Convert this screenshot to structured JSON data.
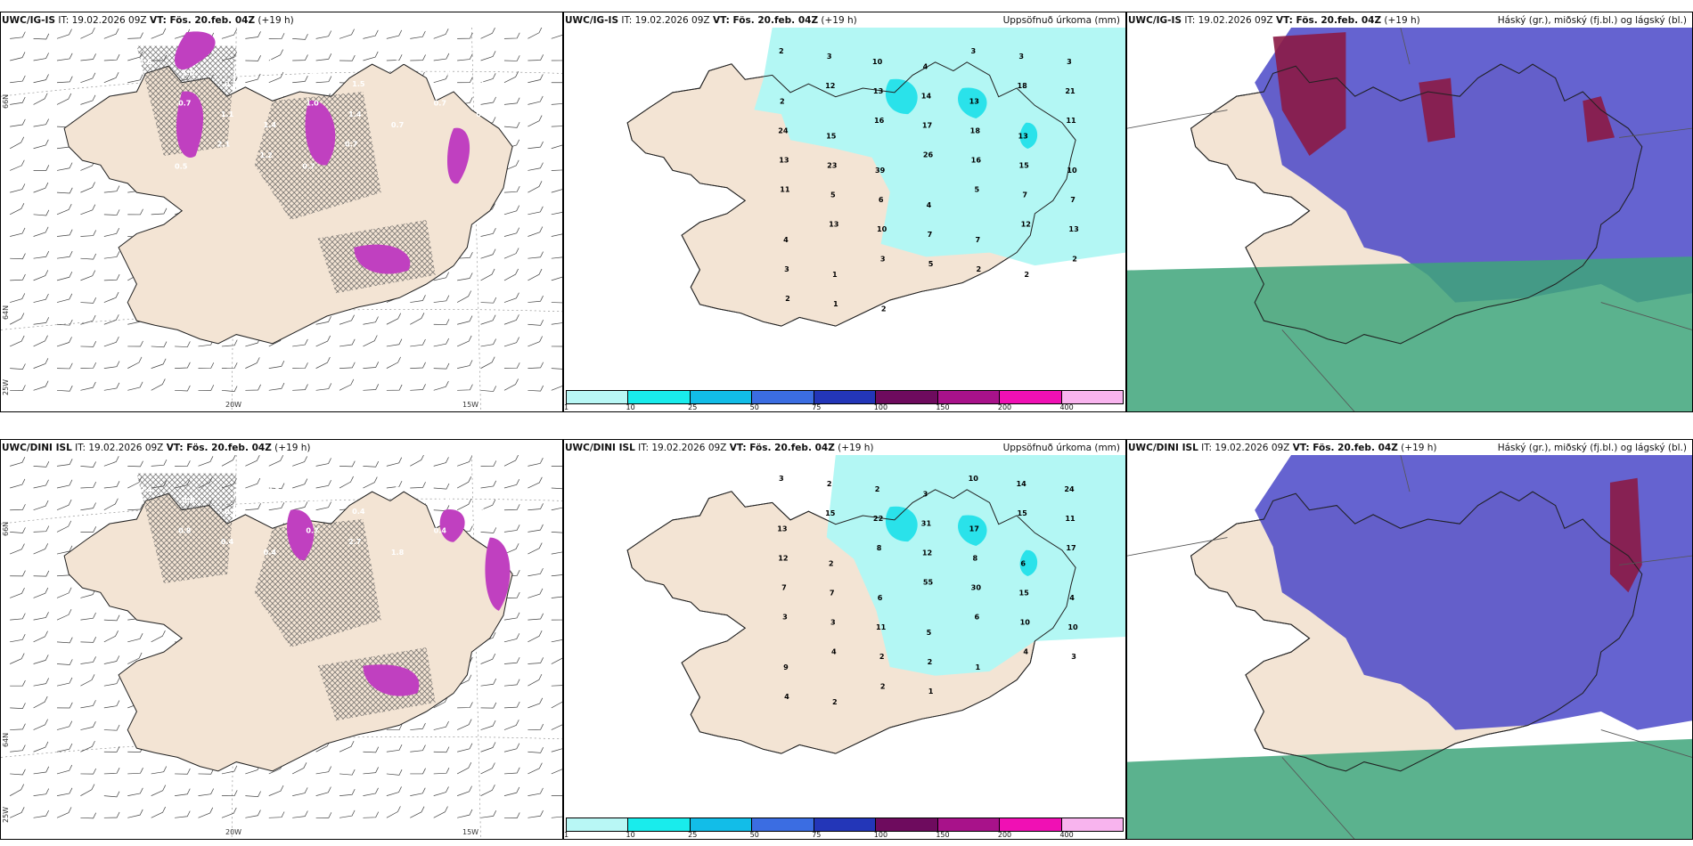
{
  "panels": [
    {
      "model": "UWC/IG-IS",
      "it": "IT: 19.02.2026 09Z",
      "vt": "VT: Fös. 20.feb. 04Z",
      "lead": "(+19 h)",
      "right": ""
    },
    {
      "model": "UWC/IG-IS",
      "it": "IT: 19.02.2026 09Z",
      "vt": "VT: Fös. 20.feb. 04Z",
      "lead": "(+19 h)",
      "right": "Uppsöfnuð úrkoma (mm)"
    },
    {
      "model": "UWC/IG-IS",
      "it": "IT: 19.02.2026 09Z",
      "vt": "VT: Fös. 20.feb. 04Z",
      "lead": "(+19 h)",
      "right": "Háský (gr.), miðský (fj.bl.) og lágský (bl.)"
    },
    {
      "model": "UWC/DINI ISL",
      "it": "IT: 19.02.2026 09Z",
      "vt": "VT: Fös. 20.feb. 04Z",
      "lead": "(+19 h)",
      "right": ""
    },
    {
      "model": "UWC/DINI ISL",
      "it": "IT: 19.02.2026 09Z",
      "vt": "VT: Fös. 20.feb. 04Z",
      "lead": "(+19 h)",
      "right": "Uppsöfnuð úrkoma (mm)"
    },
    {
      "model": "UWC/DINI ISL",
      "it": "IT: 19.02.2026 09Z",
      "vt": "VT: Fös. 20.feb. 04Z",
      "lead": "(+19 h)",
      "right": "Háský (gr.), miðský (fj.bl.) og lágský (bl.)"
    }
  ],
  "axis": {
    "lat66": "66N",
    "lat64": "64N",
    "lon25": "25W",
    "lon20": "20W",
    "lon15": "15W"
  },
  "legend": {
    "ticks": [
      "1",
      "10",
      "25",
      "50",
      "75",
      "100",
      "150",
      "200",
      "400"
    ],
    "colors": [
      "#b8f7f5",
      "#19ecec",
      "#12bde8",
      "#3b6de2",
      "#2336b8",
      "#6e0b5e",
      "#a8128a",
      "#f010b4",
      "#f8b4ee"
    ]
  },
  "colors": {
    "land": "#f3e4d4",
    "precip_light": "#b3f7f4",
    "precip_mid": "#2ae2ea",
    "magenta": "#c040c0",
    "high_cloud": "#3ea57a",
    "mid_cloud": "#6a6adf",
    "low_cloud": "#4a48c8"
  },
  "precip_values_top": [
    "2",
    "3",
    "10",
    "4",
    "3",
    "3",
    "3",
    "2",
    "12",
    "13",
    "14",
    "13",
    "18",
    "21",
    "24",
    "15",
    "16",
    "17",
    "18",
    "13",
    "11",
    "13",
    "23",
    "39",
    "26",
    "16",
    "15",
    "10",
    "11",
    "5",
    "6",
    "4",
    "5",
    "7",
    "7",
    "4",
    "13",
    "10",
    "7",
    "7",
    "12",
    "13",
    "3",
    "1",
    "3",
    "5",
    "2",
    "2",
    "2",
    "2",
    "1",
    "2"
  ],
  "precip_values_bottom": [
    "3",
    "2",
    "2",
    "3",
    "10",
    "14",
    "24",
    "13",
    "15",
    "22",
    "31",
    "17",
    "15",
    "11",
    "12",
    "2",
    "8",
    "12",
    "8",
    "6",
    "17",
    "7",
    "7",
    "6",
    "55",
    "30",
    "15",
    "4",
    "3",
    "3",
    "11",
    "5",
    "6",
    "10",
    "10",
    "9",
    "4",
    "2",
    "2",
    "1",
    "4",
    "3",
    "4",
    "2",
    "2",
    "1"
  ],
  "ice_values_top": [
    "1.6",
    "1.0",
    "0.4",
    "0.4",
    "0.4",
    "1.5",
    "1.3",
    "0.8",
    "1.0",
    "0.7",
    "1.1",
    "1.4",
    "1.0",
    "1.4",
    "0.7",
    "0.7",
    "0.9",
    "0.5",
    "2.1",
    "1.2",
    "0.7",
    "0.7"
  ],
  "ice_values_bottom": [
    "0.4",
    "0.5",
    "0.7",
    "0.5",
    "1.4",
    "0.4",
    "0.4",
    "2.3",
    "0.7",
    "0.8",
    "0.4",
    "0.4",
    "0.7",
    "2.7",
    "1.8",
    "0.4"
  ]
}
